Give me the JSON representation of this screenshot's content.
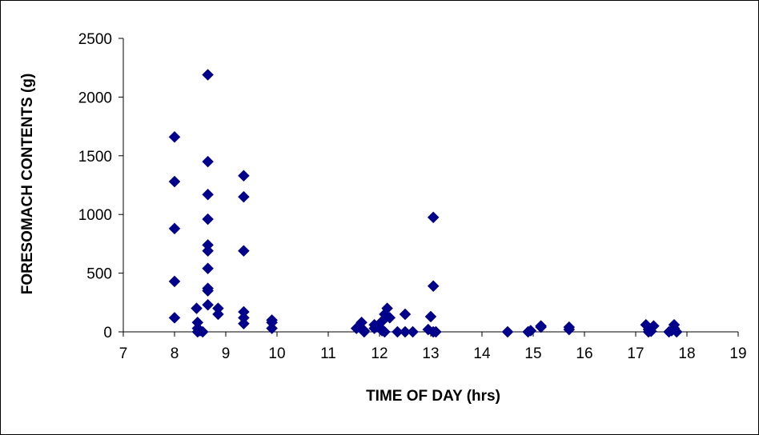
{
  "chart_data": {
    "type": "scatter",
    "title": "",
    "xlabel": "TIME OF DAY (hrs)",
    "ylabel": "FORESOMACH CONTENTS (g)",
    "xlim": [
      7,
      19
    ],
    "ylim": [
      0,
      2500
    ],
    "x_ticks": [
      7,
      8,
      9,
      10,
      11,
      12,
      13,
      14,
      15,
      16,
      17,
      18,
      19
    ],
    "y_ticks": [
      0,
      500,
      1000,
      1500,
      2000,
      2500
    ],
    "grid": false,
    "legend": "none",
    "marker": "diamond",
    "marker_color": "#00008B",
    "series": [
      {
        "points": [
          [
            8.0,
            1660
          ],
          [
            8.0,
            1280
          ],
          [
            8.0,
            880
          ],
          [
            8.0,
            430
          ],
          [
            8.0,
            120
          ],
          [
            8.43,
            200
          ],
          [
            8.45,
            80
          ],
          [
            8.45,
            30
          ],
          [
            8.5,
            10
          ],
          [
            8.55,
            0
          ],
          [
            8.45,
            0
          ],
          [
            8.65,
            2190
          ],
          [
            8.65,
            1450
          ],
          [
            8.65,
            1170
          ],
          [
            8.65,
            960
          ],
          [
            8.65,
            740
          ],
          [
            8.65,
            690
          ],
          [
            8.65,
            540
          ],
          [
            8.65,
            370
          ],
          [
            8.65,
            350
          ],
          [
            8.65,
            230
          ],
          [
            8.85,
            200
          ],
          [
            8.85,
            150
          ],
          [
            9.35,
            1330
          ],
          [
            9.35,
            1150
          ],
          [
            9.35,
            690
          ],
          [
            9.35,
            170
          ],
          [
            9.35,
            120
          ],
          [
            9.35,
            70
          ],
          [
            9.9,
            100
          ],
          [
            9.9,
            80
          ],
          [
            9.9,
            30
          ],
          [
            11.55,
            30
          ],
          [
            11.65,
            80
          ],
          [
            11.7,
            10
          ],
          [
            11.7,
            0
          ],
          [
            11.9,
            60
          ],
          [
            11.9,
            30
          ],
          [
            12.0,
            40
          ],
          [
            12.05,
            10
          ],
          [
            12.05,
            90
          ],
          [
            12.1,
            150
          ],
          [
            12.15,
            200
          ],
          [
            12.2,
            120
          ],
          [
            12.1,
            0
          ],
          [
            12.35,
            0
          ],
          [
            12.5,
            150
          ],
          [
            12.5,
            0
          ],
          [
            12.65,
            0
          ],
          [
            12.95,
            20
          ],
          [
            13.0,
            130
          ],
          [
            13.05,
            0
          ],
          [
            13.05,
            390
          ],
          [
            13.05,
            975
          ],
          [
            13.1,
            0
          ],
          [
            14.5,
            0
          ],
          [
            14.9,
            0
          ],
          [
            14.95,
            10
          ],
          [
            15.15,
            50
          ],
          [
            15.15,
            40
          ],
          [
            15.7,
            40
          ],
          [
            15.7,
            20
          ],
          [
            17.2,
            60
          ],
          [
            17.25,
            20
          ],
          [
            17.25,
            0
          ],
          [
            17.3,
            5
          ],
          [
            17.35,
            50
          ],
          [
            17.65,
            0
          ],
          [
            17.7,
            10
          ],
          [
            17.75,
            60
          ],
          [
            17.75,
            30
          ],
          [
            17.8,
            0
          ]
        ]
      }
    ]
  }
}
